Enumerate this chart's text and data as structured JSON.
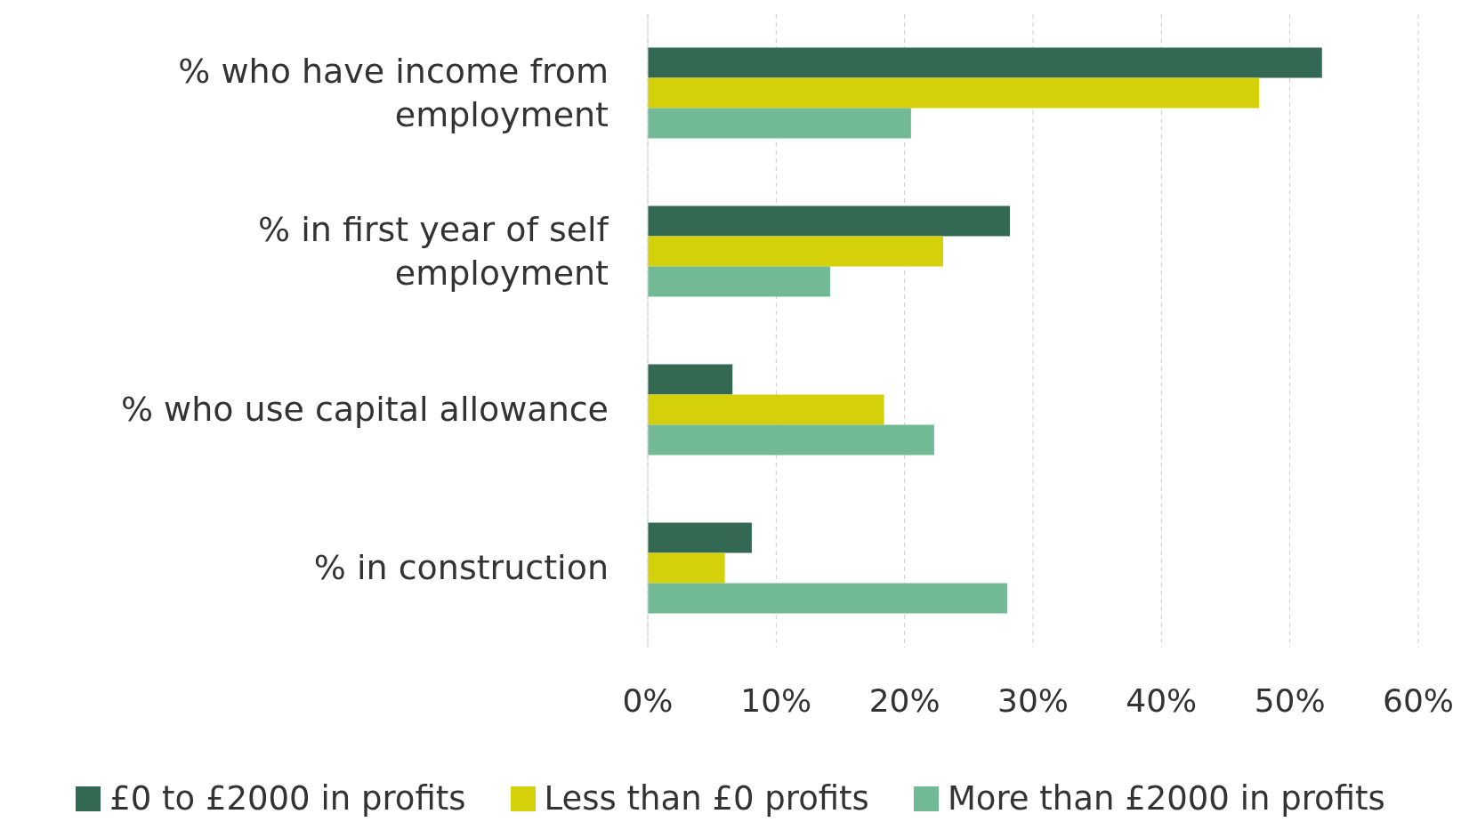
{
  "chart_data": {
    "type": "bar",
    "orientation": "horizontal",
    "categories": [
      "% who have income from employment",
      "% in first year of self employment",
      "% who use capital allowance",
      "% in construction"
    ],
    "series": [
      {
        "name": "£0 to £2000 in profits",
        "color": "#336952",
        "values": [
          52.5,
          28.2,
          6.6,
          8.1
        ]
      },
      {
        "name": "Less than £0 profits",
        "color": "#d4d10a",
        "values": [
          47.6,
          23.0,
          18.4,
          6.0
        ]
      },
      {
        "name": "More than £2000 in profits",
        "color": "#72b995",
        "values": [
          20.5,
          14.2,
          22.3,
          28.0
        ]
      }
    ],
    "xlim": [
      0,
      60
    ],
    "xticks": [
      {
        "value": 0,
        "label": "0%"
      },
      {
        "value": 10,
        "label": "10%"
      },
      {
        "value": 20,
        "label": "20%"
      },
      {
        "value": 30,
        "label": "30%"
      },
      {
        "value": 40,
        "label": "40%"
      },
      {
        "value": 50,
        "label": "50%"
      },
      {
        "value": 60,
        "label": "60%"
      }
    ],
    "grid": "x",
    "legend": "bottom"
  }
}
